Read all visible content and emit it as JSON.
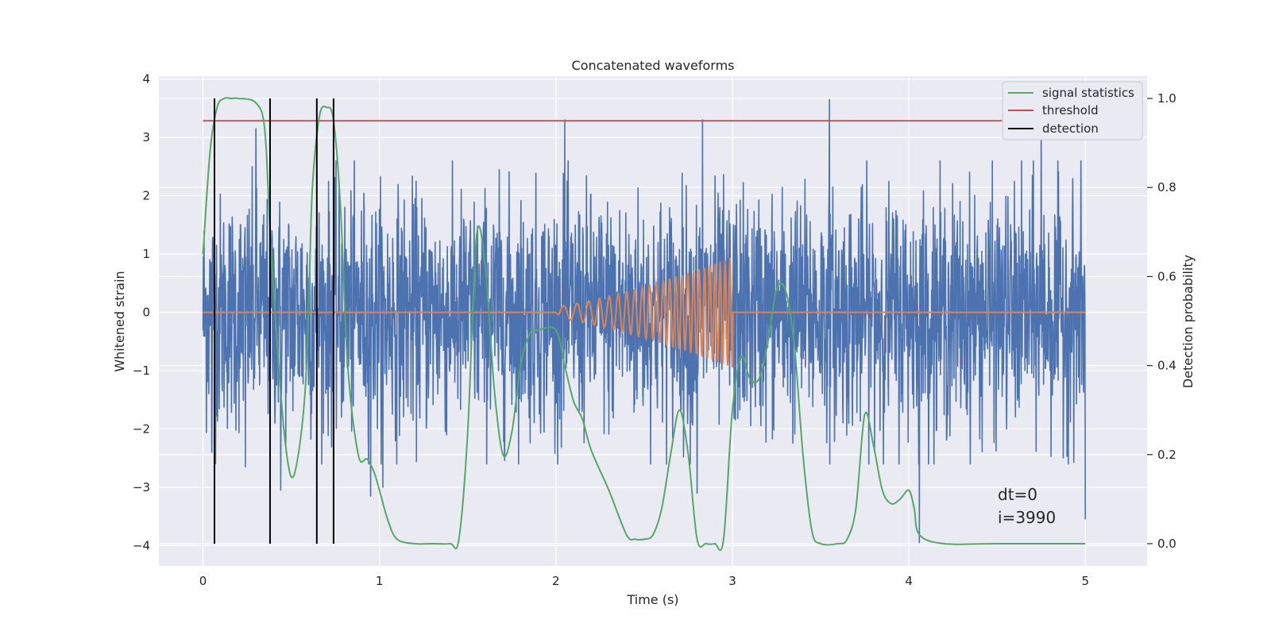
{
  "chart_data": {
    "type": "line",
    "title": "Concatenated waveforms",
    "xlabel": "Time (s)",
    "ylabel": "Whitened strain",
    "y2label": "Detection probability",
    "xlim": [
      -0.25,
      5.35
    ],
    "ylim": [
      -4.35,
      4.05
    ],
    "y2lim": [
      -0.05,
      1.05
    ],
    "xticks": [
      0,
      1,
      2,
      3,
      4,
      5
    ],
    "yticks": [
      -4,
      -3,
      -2,
      -1,
      0,
      1,
      2,
      3,
      4
    ],
    "y2ticks": [
      0.0,
      0.2,
      0.4,
      0.6,
      0.8,
      1.0
    ],
    "xtick_labels": [
      "0",
      "1",
      "2",
      "3",
      "4",
      "5"
    ],
    "ytick_labels": [
      "−4",
      "−3",
      "−2",
      "−1",
      "0",
      "1",
      "2",
      "3",
      "4"
    ],
    "y2tick_labels": [
      "0.0",
      "0.2",
      "0.4",
      "0.6",
      "0.8",
      "1.0"
    ],
    "grid": true,
    "legend_position": "top-right",
    "noise": {
      "color": "#4c72b0",
      "x_range": [
        0,
        5
      ],
      "typical_range": [
        -2.6,
        2.6
      ],
      "extremes": [
        [
          0.24,
          -2.65
        ],
        [
          0.44,
          -3.05
        ],
        [
          0.95,
          -3.15
        ],
        [
          1.02,
          -3.0
        ],
        [
          2.83,
          3.3
        ],
        [
          2.8,
          -3.1
        ],
        [
          3.55,
          3.65
        ],
        [
          4.06,
          -3.95
        ],
        [
          5.0,
          -3.55
        ],
        [
          0.05,
          -2.4
        ],
        [
          0.3,
          3.15
        ],
        [
          2.05,
          3.3
        ],
        [
          4.75,
          3.3
        ]
      ]
    },
    "chirp": {
      "color": "#dd8452",
      "x_range": [
        2,
        3
      ],
      "amplitude_start": 0.1,
      "amplitude_end": 0.95,
      "baseline": 0
    },
    "series": [
      {
        "name": "signal statistics",
        "axis": "right",
        "color": "#55a868",
        "x": [
          0,
          0.04,
          0.08,
          0.12,
          0.16,
          0.2,
          0.3,
          0.35,
          0.38,
          0.42,
          0.46,
          0.5,
          0.54,
          0.58,
          0.6,
          0.62,
          0.66,
          0.7,
          0.74,
          0.78,
          0.82,
          0.88,
          0.93,
          0.97,
          1.0,
          1.05,
          1.1,
          1.2,
          1.3,
          1.4,
          1.45,
          1.5,
          1.55,
          1.6,
          1.65,
          1.7,
          1.75,
          1.8,
          1.85,
          1.9,
          2.0,
          2.05,
          2.1,
          2.15,
          2.2,
          2.3,
          2.4,
          2.45,
          2.5,
          2.55,
          2.6,
          2.65,
          2.7,
          2.75,
          2.8,
          2.85,
          2.9,
          2.95,
          3.0,
          3.05,
          3.1,
          3.15,
          3.2,
          3.25,
          3.3,
          3.35,
          3.4,
          3.45,
          3.5,
          3.6,
          3.65,
          3.7,
          3.75,
          3.8,
          3.85,
          3.9,
          3.95,
          4.0,
          4.03,
          4.06,
          4.2,
          4.5,
          5.0
        ],
        "values": [
          0.65,
          0.88,
          0.98,
          1.0,
          1.0,
          1.0,
          0.99,
          0.93,
          0.7,
          0.45,
          0.25,
          0.15,
          0.2,
          0.35,
          0.55,
          0.8,
          0.96,
          0.98,
          0.95,
          0.75,
          0.4,
          0.2,
          0.19,
          0.16,
          0.12,
          0.05,
          0.01,
          0.0,
          0.0,
          0.0,
          0.01,
          0.25,
          0.69,
          0.62,
          0.35,
          0.2,
          0.25,
          0.4,
          0.47,
          0.48,
          0.48,
          0.4,
          0.32,
          0.28,
          0.21,
          0.12,
          0.02,
          0.01,
          0.01,
          0.02,
          0.08,
          0.2,
          0.3,
          0.2,
          0.01,
          0.0,
          0.0,
          0.01,
          0.3,
          0.42,
          0.37,
          0.37,
          0.45,
          0.57,
          0.57,
          0.45,
          0.2,
          0.03,
          0.0,
          0.0,
          0.01,
          0.08,
          0.29,
          0.22,
          0.12,
          0.09,
          0.1,
          0.12,
          0.08,
          0.02,
          0.0,
          0.0,
          0.0
        ]
      },
      {
        "name": "threshold",
        "axis": "right",
        "color": "#c44e52",
        "x": [
          0,
          5
        ],
        "values": [
          0.95,
          0.95
        ]
      },
      {
        "name": "detection",
        "axis": "right",
        "color": "#000000",
        "x": [
          0.065,
          0.38,
          0.645,
          0.74
        ],
        "y_range": [
          0,
          1
        ]
      }
    ],
    "annotations": [
      "dt=0",
      "i=3990"
    ]
  }
}
